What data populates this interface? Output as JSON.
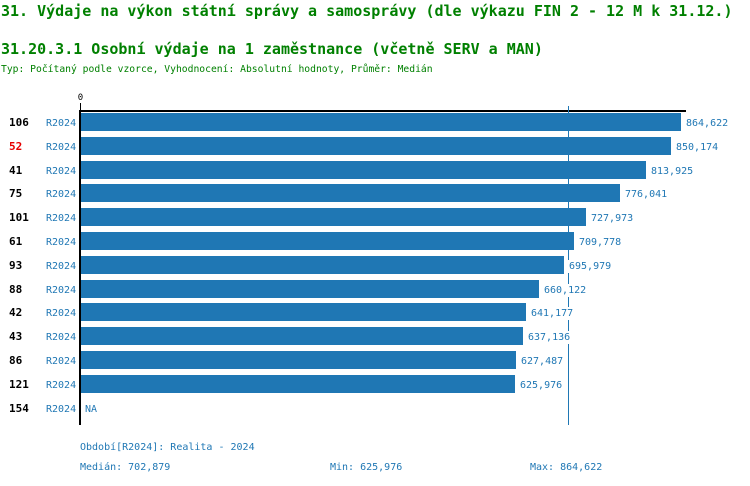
{
  "titles": {
    "line1": "31. Výdaje na výkon státní správy a samosprávy (dle výkazu FIN 2 - 12 M k 31.12.)",
    "line2": "31.20.3.1 Osobní výdaje na 1 zaměstnance (včetně SERV a MAN)",
    "line3": "Typ: Počítaný podle vzorce, Vyhodnocení: Absolutní hodnoty, Průměr: Medián"
  },
  "colors": {
    "title_green": "#008000",
    "bar_blue": "#1f77b4",
    "text_blue": "#1f77b4",
    "highlight_red": "#e60000",
    "axis_black": "#000000"
  },
  "chart_data": {
    "type": "bar",
    "orientation": "horizontal",
    "x_axis": {
      "origin_label": "0",
      "min": 0,
      "max": 864622,
      "grid": false
    },
    "median_line_value": 702879,
    "na_label": "NA",
    "rows": [
      {
        "rank": "106",
        "period": "R2024",
        "value": 864622,
        "value_label": "864,622",
        "highlighted": false
      },
      {
        "rank": "52",
        "period": "R2024",
        "value": 850174,
        "value_label": "850,174",
        "highlighted": true
      },
      {
        "rank": "41",
        "period": "R2024",
        "value": 813925,
        "value_label": "813,925",
        "highlighted": false
      },
      {
        "rank": "75",
        "period": "R2024",
        "value": 776041,
        "value_label": "776,041",
        "highlighted": false
      },
      {
        "rank": "101",
        "period": "R2024",
        "value": 727973,
        "value_label": "727,973",
        "highlighted": false
      },
      {
        "rank": "61",
        "period": "R2024",
        "value": 709778,
        "value_label": "709,778",
        "highlighted": false
      },
      {
        "rank": "93",
        "period": "R2024",
        "value": 695979,
        "value_label": "695,979",
        "highlighted": false
      },
      {
        "rank": "88",
        "period": "R2024",
        "value": 660122,
        "value_label": "660,122",
        "highlighted": false
      },
      {
        "rank": "42",
        "period": "R2024",
        "value": 641177,
        "value_label": "641,177",
        "highlighted": false
      },
      {
        "rank": "43",
        "period": "R2024",
        "value": 637136,
        "value_label": "637,136",
        "highlighted": false
      },
      {
        "rank": "86",
        "period": "R2024",
        "value": 627487,
        "value_label": "627,487",
        "highlighted": false
      },
      {
        "rank": "121",
        "period": "R2024",
        "value": 625976,
        "value_label": "625,976",
        "highlighted": false
      },
      {
        "rank": "154",
        "period": "R2024",
        "value": null,
        "value_label": "NA",
        "highlighted": false
      }
    ]
  },
  "footer": {
    "period_info": "Období[R2024]: Realita - 2024",
    "median": "Medián: 702,879",
    "min": "Min: 625,976",
    "max": "Max: 864,622"
  }
}
